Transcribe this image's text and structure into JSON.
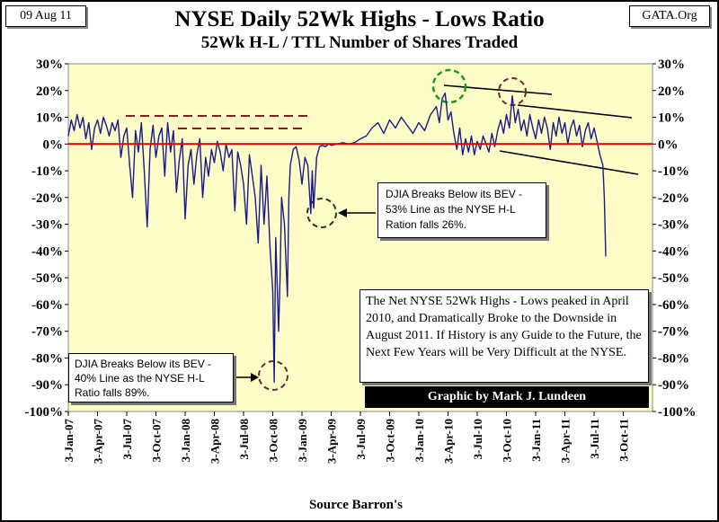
{
  "header": {
    "date_badge": "09 Aug 11",
    "source_badge": "GATA.Org",
    "title": "NYSE Daily 52Wk Highs - Lows Ratio",
    "subtitle": "52Wk H-L / TTL Number of Shares Traded"
  },
  "chart_data": {
    "type": "line",
    "title": "NYSE Daily 52Wk Highs - Lows Ratio",
    "subtitle": "52Wk H-L / TTL Number of Shares Traded",
    "xlabel": "Source Barron's",
    "ylabel": "",
    "ylim": [
      -100,
      30
    ],
    "y_ticks": [
      "30%",
      "20%",
      "10%",
      "0%",
      "-10%",
      "-20%",
      "-30%",
      "-40%",
      "-50%",
      "-60%",
      "-70%",
      "-80%",
      "-90%",
      "-100%"
    ],
    "x_ticks": [
      "3-Jan-07",
      "3-Apr-07",
      "3-Jul-07",
      "3-Oct-07",
      "3-Jan-08",
      "3-Apr-08",
      "3-Jul-08",
      "3-Oct-08",
      "3-Jan-09",
      "3-Apr-09",
      "3-Jul-09",
      "3-Oct-09",
      "3-Jan-10",
      "3-Apr-10",
      "3-Jul-10",
      "3-Oct-10",
      "3-Jan-11",
      "3-Apr-11",
      "3-Jul-11",
      "3-Oct-11"
    ],
    "x_range_quarters": [
      0,
      20
    ],
    "series": [
      {
        "name": "52Wk H-L Ratio",
        "color": "#1a1a8c",
        "points": [
          [
            0.0,
            3
          ],
          [
            0.1,
            9
          ],
          [
            0.2,
            5
          ],
          [
            0.3,
            11
          ],
          [
            0.4,
            6
          ],
          [
            0.5,
            10
          ],
          [
            0.6,
            2
          ],
          [
            0.7,
            8
          ],
          [
            0.8,
            -2
          ],
          [
            0.9,
            6
          ],
          [
            1.0,
            9
          ],
          [
            1.1,
            4
          ],
          [
            1.2,
            10
          ],
          [
            1.3,
            7
          ],
          [
            1.4,
            3
          ],
          [
            1.5,
            8
          ],
          [
            1.6,
            5
          ],
          [
            1.7,
            9
          ],
          [
            1.8,
            -5
          ],
          [
            1.9,
            3
          ],
          [
            2.0,
            6
          ],
          [
            2.1,
            -8
          ],
          [
            2.2,
            -20
          ],
          [
            2.3,
            5
          ],
          [
            2.4,
            -3
          ],
          [
            2.5,
            8
          ],
          [
            2.6,
            -10
          ],
          [
            2.7,
            -31
          ],
          [
            2.8,
            -2
          ],
          [
            2.9,
            7
          ],
          [
            3.0,
            -5
          ],
          [
            3.1,
            3
          ],
          [
            3.2,
            6
          ],
          [
            3.3,
            -12
          ],
          [
            3.4,
            8
          ],
          [
            3.5,
            -3
          ],
          [
            3.6,
            5
          ],
          [
            3.7,
            -18
          ],
          [
            3.8,
            -6
          ],
          [
            3.9,
            2
          ],
          [
            4.0,
            -28
          ],
          [
            4.1,
            -8
          ],
          [
            4.2,
            -2
          ],
          [
            4.3,
            -15
          ],
          [
            4.4,
            -4
          ],
          [
            4.5,
            2
          ],
          [
            4.6,
            -20
          ],
          [
            4.7,
            -5
          ],
          [
            4.8,
            -12
          ],
          [
            4.9,
            -2
          ],
          [
            5.0,
            -7
          ],
          [
            5.1,
            1
          ],
          [
            5.2,
            -3
          ],
          [
            5.3,
            -10
          ],
          [
            5.4,
            0
          ],
          [
            5.5,
            -5
          ],
          [
            5.6,
            -2
          ],
          [
            5.7,
            -25
          ],
          [
            5.8,
            -3
          ],
          [
            5.9,
            -8
          ],
          [
            6.0,
            -15
          ],
          [
            6.1,
            -30
          ],
          [
            6.2,
            -4
          ],
          [
            6.3,
            -12
          ],
          [
            6.4,
            -20
          ],
          [
            6.5,
            -37
          ],
          [
            6.6,
            -8
          ],
          [
            6.7,
            -30
          ],
          [
            6.8,
            -12
          ],
          [
            6.9,
            -38
          ],
          [
            7.0,
            -55
          ],
          [
            7.05,
            -89
          ],
          [
            7.1,
            -35
          ],
          [
            7.2,
            -70
          ],
          [
            7.25,
            -50
          ],
          [
            7.3,
            -20
          ],
          [
            7.4,
            -30
          ],
          [
            7.5,
            -57
          ],
          [
            7.55,
            -20
          ],
          [
            7.6,
            -8
          ],
          [
            7.7,
            -2
          ],
          [
            7.8,
            -1
          ],
          [
            7.9,
            -6
          ],
          [
            8.0,
            -15
          ],
          [
            8.1,
            -5
          ],
          [
            8.2,
            -8
          ],
          [
            8.3,
            -26
          ],
          [
            8.35,
            -10
          ],
          [
            8.4,
            -24
          ],
          [
            8.5,
            -5
          ],
          [
            8.6,
            -1
          ],
          [
            8.7,
            -0.5
          ],
          [
            8.8,
            -1
          ],
          [
            8.9,
            0
          ],
          [
            9.0,
            -0.5
          ],
          [
            9.2,
            0
          ],
          [
            9.4,
            0.5
          ],
          [
            9.6,
            0
          ],
          [
            9.8,
            0.5
          ],
          [
            10.0,
            2
          ],
          [
            10.2,
            3
          ],
          [
            10.4,
            6
          ],
          [
            10.6,
            8
          ],
          [
            10.8,
            4
          ],
          [
            11.0,
            9
          ],
          [
            11.2,
            6
          ],
          [
            11.4,
            10
          ],
          [
            11.6,
            7
          ],
          [
            11.8,
            4
          ],
          [
            12.0,
            8
          ],
          [
            12.2,
            5
          ],
          [
            12.4,
            11
          ],
          [
            12.6,
            14
          ],
          [
            12.7,
            8
          ],
          [
            12.8,
            17
          ],
          [
            12.9,
            19
          ],
          [
            13.0,
            9
          ],
          [
            13.1,
            12
          ],
          [
            13.2,
            4
          ],
          [
            13.3,
            -2
          ],
          [
            13.4,
            6
          ],
          [
            13.5,
            -4
          ],
          [
            13.6,
            2
          ],
          [
            13.7,
            -3
          ],
          [
            13.8,
            3
          ],
          [
            13.9,
            -4
          ],
          [
            14.0,
            1
          ],
          [
            14.1,
            -2
          ],
          [
            14.2,
            3
          ],
          [
            14.3,
            0
          ],
          [
            14.4,
            -3
          ],
          [
            14.5,
            4
          ],
          [
            14.6,
            -1
          ],
          [
            14.7,
            5
          ],
          [
            14.8,
            9
          ],
          [
            14.9,
            4
          ],
          [
            15.0,
            11
          ],
          [
            15.1,
            6
          ],
          [
            15.2,
            18
          ],
          [
            15.3,
            8
          ],
          [
            15.4,
            13
          ],
          [
            15.5,
            5
          ],
          [
            15.6,
            9
          ],
          [
            15.7,
            3
          ],
          [
            15.8,
            11
          ],
          [
            15.9,
            6
          ],
          [
            16.0,
            2
          ],
          [
            16.1,
            9
          ],
          [
            16.2,
            4
          ],
          [
            16.3,
            10
          ],
          [
            16.4,
            6
          ],
          [
            16.5,
            -2
          ],
          [
            16.6,
            8
          ],
          [
            16.7,
            3
          ],
          [
            16.8,
            10
          ],
          [
            16.9,
            4
          ],
          [
            17.0,
            8
          ],
          [
            17.1,
            0
          ],
          [
            17.2,
            6
          ],
          [
            17.3,
            9
          ],
          [
            17.4,
            3
          ],
          [
            17.5,
            7
          ],
          [
            17.6,
            -1
          ],
          [
            17.7,
            5
          ],
          [
            17.8,
            8
          ],
          [
            17.9,
            2
          ],
          [
            18.0,
            6
          ],
          [
            18.1,
            1
          ],
          [
            18.2,
            -4
          ],
          [
            18.3,
            -8
          ],
          [
            18.35,
            -20
          ],
          [
            18.4,
            -42
          ]
        ]
      }
    ],
    "annotations": [
      {
        "text": "DJIA Breaks Below its BEV - 53% Line as the NYSE H-L Ration falls  26%."
      },
      {
        "text": "The Net NYSE 52Wk Highs - Lows peaked in April 2010, and Dramatically Broke to the Downside in August 2011.  If History is any Guide to the Future, the Next Few Years will be Very Difficult at the NYSE."
      },
      {
        "text": "DJIA Breaks Below its BEV - 40% Line as the NYSE H-L Ratio falls  89%."
      },
      {
        "text": "Graphic by Mark J. Lundeen"
      }
    ],
    "colors": {
      "plot_bg": "#fdfbc6",
      "zero_line": "#e00000",
      "series": "#1a1a8c",
      "dashed": "#8b1a1a",
      "green_circle": "#1a9a1a",
      "credit_bg": "#000000"
    }
  }
}
